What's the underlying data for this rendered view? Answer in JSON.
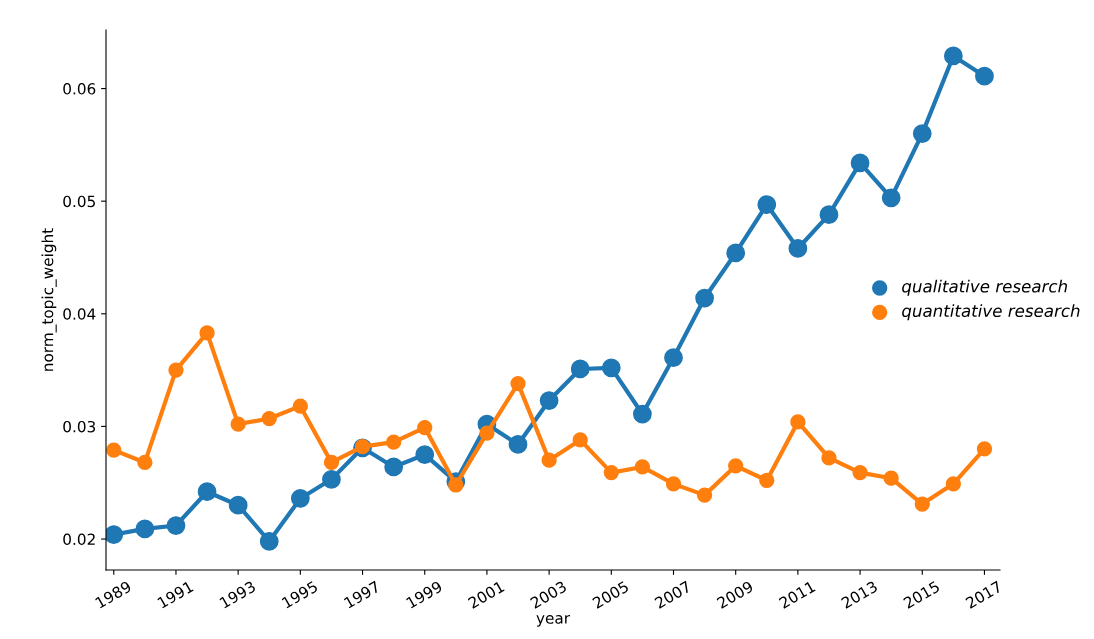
{
  "chart_data": {
    "type": "line",
    "xlabel": "year",
    "ylabel": "norm_topic_weight",
    "categories": [
      "1989",
      null,
      "1991",
      null,
      "1993",
      null,
      "1995",
      null,
      "1997",
      null,
      "1999",
      null,
      "2001",
      null,
      "2003",
      null,
      "2005",
      null,
      "2007",
      null,
      "2009",
      null,
      "2011",
      null,
      "2013",
      null,
      "2015",
      null,
      "2017"
    ],
    "series": [
      {
        "name": "qualitative research",
        "color": "#1f77b4",
        "values": [
          0.0204,
          0.0209,
          0.0212,
          0.0242,
          0.023,
          0.0198,
          0.0236,
          0.0253,
          0.0281,
          0.0264,
          0.0275,
          0.0251,
          0.0302,
          0.0284,
          0.0323,
          0.0351,
          0.0352,
          0.0311,
          0.0361,
          0.0414,
          0.0454,
          0.0497,
          0.0458,
          0.0488,
          0.0534,
          0.0503,
          0.056,
          0.0629,
          0.0611
        ]
      },
      {
        "name": "quantitative research",
        "color": "#ff7f0e",
        "values": [
          0.0279,
          0.0268,
          0.035,
          0.0383,
          0.0302,
          0.0307,
          0.0318,
          0.0268,
          0.0282,
          0.0286,
          0.0299,
          0.0248,
          0.0294,
          0.0338,
          0.027,
          0.0288,
          0.0259,
          0.0264,
          0.0249,
          0.0239,
          0.0265,
          0.0252,
          0.0304,
          0.0272,
          0.0259,
          0.0254,
          0.0231,
          0.0249,
          0.028
        ]
      }
    ],
    "ylim": [
      0.01725,
      0.0652
    ],
    "yticks": [
      0.02,
      0.03,
      0.04,
      0.05,
      0.06
    ],
    "marker": "circle",
    "line_style": "solid",
    "legend": "right",
    "grid": false
  }
}
